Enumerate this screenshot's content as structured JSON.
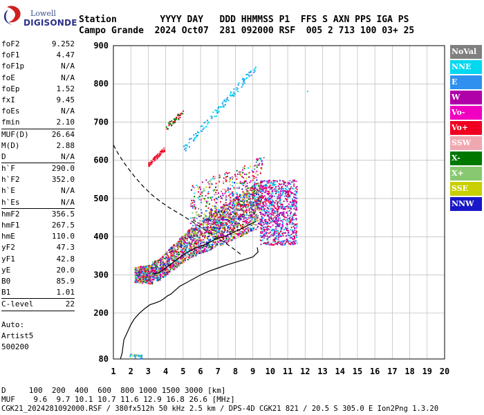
{
  "logo": {
    "line1": "Lowell",
    "line2": "DIGISONDE"
  },
  "header": {
    "line1": "Station        YYYY DAY   DDD HHMMSS P1  FFS S AXN PPS IGA PS",
    "line2": "Campo Grande  2024 Oct07  281 092000 RSF  005 2 713 100 03+ 25"
  },
  "params": [
    {
      "label": "foF2",
      "value": "9.252"
    },
    {
      "label": "foF1",
      "value": "4.47"
    },
    {
      "label": "foF1p",
      "value": "N/A"
    },
    {
      "label": "foE",
      "value": "N/A"
    },
    {
      "label": "foEp",
      "value": "1.52"
    },
    {
      "label": "fxI",
      "value": "9.45"
    },
    {
      "label": "foEs",
      "value": "N/A"
    },
    {
      "label": "fmin",
      "value": "2.10",
      "sep": true
    },
    {
      "label": "MUF(D)",
      "value": "26.64"
    },
    {
      "label": "M(D)",
      "value": "2.88"
    },
    {
      "label": "D",
      "value": "N/A",
      "sep": true
    },
    {
      "label": "h`F",
      "value": "290.0"
    },
    {
      "label": "h`F2",
      "value": "352.0"
    },
    {
      "label": "h`E",
      "value": "N/A"
    },
    {
      "label": "h`Es",
      "value": "N/A",
      "sep": true
    },
    {
      "label": "hmF2",
      "value": "356.5"
    },
    {
      "label": "hmF1",
      "value": "267.5"
    },
    {
      "label": "hmE",
      "value": "110.0"
    },
    {
      "label": "yF2",
      "value": "47.3"
    },
    {
      "label": "yF1",
      "value": "42.8"
    },
    {
      "label": "yE",
      "value": "20.0"
    },
    {
      "label": "B0",
      "value": "85.9"
    },
    {
      "label": "B1",
      "value": "1.01",
      "sep": true
    },
    {
      "label": "C-level",
      "value": "22",
      "sep": true
    }
  ],
  "autoscale": {
    "line1": "Auto:",
    "line2": "Artist5",
    "line3": "500200"
  },
  "legend": [
    {
      "label": "NoVal",
      "color": "#808080"
    },
    {
      "label": "NNE",
      "color": "#00d8f0"
    },
    {
      "label": "E",
      "color": "#3090f0"
    },
    {
      "label": "W",
      "color": "#b000a8"
    },
    {
      "label": "Vo-",
      "color": "#f000c0"
    },
    {
      "label": "Vo+",
      "color": "#f00020"
    },
    {
      "label": "SSW",
      "color": "#f0a8b0"
    },
    {
      "label": "X-",
      "color": "#007800"
    },
    {
      "label": "X+",
      "color": "#88c870"
    },
    {
      "label": "SSE",
      "color": "#c8d000"
    },
    {
      "label": "NNW",
      "color": "#1818c8"
    }
  ],
  "footer": {
    "line1": "D     100  200  400  600  800 1000 1500 3000 [km]",
    "line2": "MUF    9.6  9.7 10.1 10.7 11.6 12.9 16.8 26.6 [MHz]",
    "line3": "CGK21_2024281092000.RSF / 380fx512h 50 kHz 2.5 km / DPS-4D CGK21 821 / 20.5 S 305.0 E Ion2Png 1.3.20"
  },
  "chart_data": {
    "type": "scatter",
    "title": "",
    "xlabel": "",
    "ylabel": "",
    "xlim": [
      1,
      20
    ],
    "ylim": [
      80,
      900
    ],
    "x_ticks": [
      "1",
      "2",
      "3",
      "4",
      "5",
      "6",
      "7",
      "8",
      "9",
      "10",
      "11",
      "12",
      "13",
      "14",
      "15",
      "16",
      "17",
      "18",
      "19",
      "20"
    ],
    "y_ticks": [
      "80",
      "200",
      "300",
      "400",
      "500",
      "600",
      "700",
      "800",
      "900"
    ],
    "grid": true,
    "legend_position": "right",
    "true_height_profile": {
      "style": "solid",
      "x": [
        1.4,
        1.5,
        1.6,
        1.8,
        2.0,
        2.2,
        2.5,
        2.8,
        3.1,
        3.5,
        3.7,
        3.9,
        4.1,
        4.3,
        4.5,
        4.8,
        5.2,
        5.6,
        6.0,
        6.5,
        7.0,
        7.5,
        8.0,
        8.5,
        9.0,
        9.3,
        9.25
      ],
      "y": [
        80,
        95,
        130,
        150,
        170,
        185,
        200,
        212,
        222,
        228,
        232,
        238,
        245,
        250,
        258,
        270,
        280,
        290,
        300,
        310,
        318,
        326,
        333,
        340,
        347,
        360,
        372
      ]
    },
    "model_profile": {
      "style": "dashed",
      "x": [
        1.0,
        1.3,
        1.7,
        2.2,
        2.7,
        3.2,
        3.7,
        4.2,
        4.8,
        5.4,
        6.0,
        6.6,
        7.2,
        7.6,
        8.0,
        8.4
      ],
      "y": [
        640,
        615,
        588,
        558,
        532,
        510,
        492,
        476,
        460,
        443,
        425,
        408,
        390,
        378,
        365,
        350
      ]
    },
    "virtual_height_trace": {
      "style": "solid",
      "x": [
        3.2,
        3.6,
        4.0,
        4.4,
        4.8,
        5.2,
        5.6,
        6.0,
        6.4,
        6.8,
        7.2,
        7.6,
        8.0,
        8.4,
        8.8,
        9.2
      ],
      "y": [
        302,
        305,
        318,
        332,
        346,
        358,
        368,
        375,
        382,
        392,
        398,
        405,
        414,
        422,
        432,
        440
      ]
    },
    "echo_regions": [
      {
        "name": "F-trace lower",
        "x_range": [
          2.2,
          9.4
        ],
        "height_range": [
          285,
          440
        ]
      },
      {
        "name": "F-trace spread",
        "x_range": [
          5.5,
          11.5
        ],
        "height_range": [
          360,
          580
        ]
      },
      {
        "name": "second hop",
        "x_range": [
          3.0,
          9.2
        ],
        "height_range": [
          580,
          860
        ]
      }
    ]
  }
}
